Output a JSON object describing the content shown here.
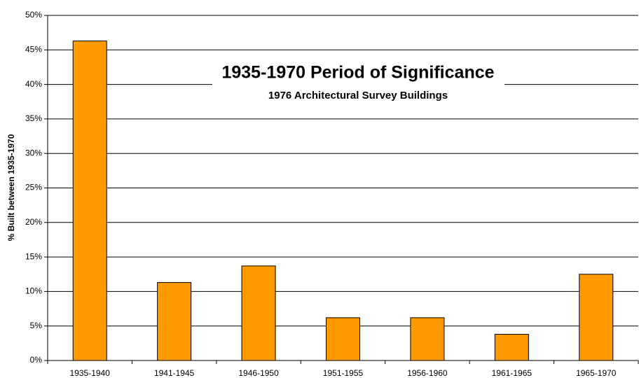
{
  "chart_data": {
    "type": "bar",
    "title": "1935-1970 Period of Significance",
    "subtitle": "1976 Architectural Survey Buildings",
    "y_label": "% Built between 1935-1970",
    "categories": [
      "1935-1940",
      "1941-1945",
      "1946-1950",
      "1951-1955",
      "1956-1960",
      "1961-1965",
      "1965-1970"
    ],
    "values": [
      46.3,
      11.3,
      13.7,
      6.2,
      6.2,
      3.8,
      12.5
    ],
    "color": "#ff9900",
    "ylim": [
      0,
      50
    ],
    "yticks": [
      {
        "value": 0,
        "label": "0%"
      },
      {
        "value": 5,
        "label": "5%"
      },
      {
        "value": 10,
        "label": "10%"
      },
      {
        "value": 15,
        "label": "15%"
      },
      {
        "value": 20,
        "label": "20%"
      },
      {
        "value": 25,
        "label": "25%"
      },
      {
        "value": 30,
        "label": "30%"
      },
      {
        "value": 35,
        "label": "35%"
      },
      {
        "value": 40,
        "label": "40%"
      },
      {
        "value": 45,
        "label": "45%"
      },
      {
        "value": 50,
        "label": "50%"
      }
    ],
    "grid": true
  }
}
